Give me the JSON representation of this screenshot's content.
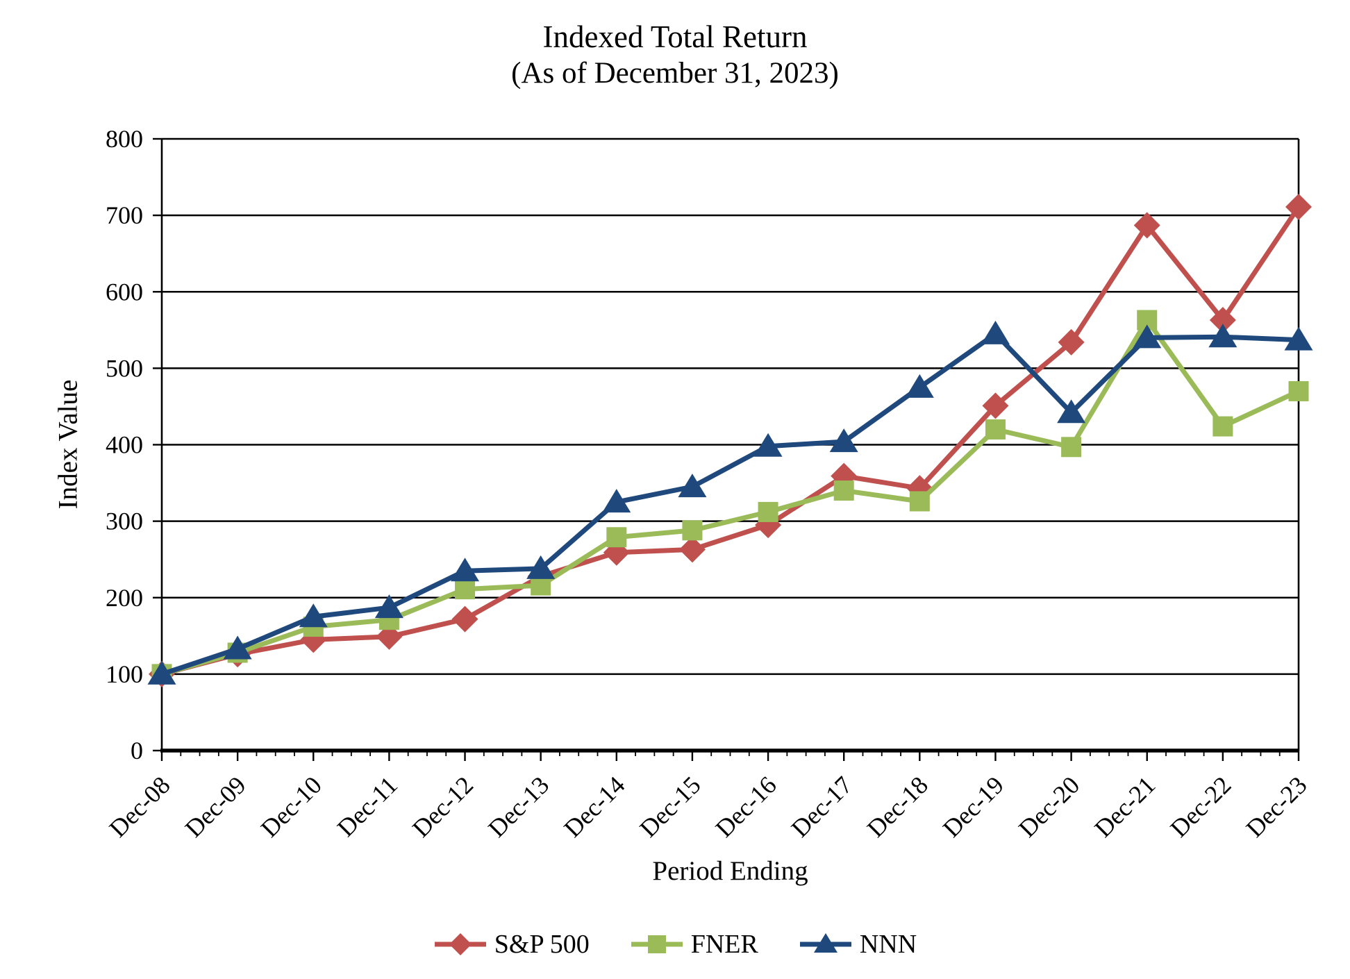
{
  "title": "Indexed Total Return",
  "subtitle": "(As of December 31, 2023)",
  "chart_data": {
    "type": "line",
    "title": "Indexed Total Return",
    "subtitle": "(As of December 31, 2023)",
    "xlabel": "Period Ending",
    "ylabel": "Index Value",
    "ylim": [
      0,
      800
    ],
    "yticks": [
      0,
      100,
      200,
      300,
      400,
      500,
      600,
      700,
      800
    ],
    "grid": "horizontal",
    "legend_position": "bottom",
    "x_minor_divisions": 4,
    "categories": [
      "Dec-08",
      "Dec-09",
      "Dec-10",
      "Dec-11",
      "Dec-12",
      "Dec-13",
      "Dec-14",
      "Dec-15",
      "Dec-16",
      "Dec-17",
      "Dec-18",
      "Dec-19",
      "Dec-20",
      "Dec-21",
      "Dec-22",
      "Dec-23"
    ],
    "series": [
      {
        "name": "S&P 500",
        "marker": "diamond",
        "color": "#C0504D",
        "values": [
          100,
          126,
          145,
          149,
          172,
          228,
          259,
          263,
          295,
          359,
          343,
          451,
          534,
          687,
          563,
          711
        ]
      },
      {
        "name": "FNER",
        "marker": "square",
        "color": "#9BBB59",
        "values": [
          100,
          128,
          162,
          171,
          211,
          216,
          279,
          288,
          312,
          340,
          326,
          420,
          397,
          563,
          424,
          470
        ]
      },
      {
        "name": "NNN",
        "marker": "triangle",
        "color": "#1F497D",
        "values": [
          100,
          133,
          175,
          187,
          235,
          238,
          325,
          345,
          398,
          404,
          475,
          545,
          442,
          540,
          541,
          537
        ]
      }
    ],
    "axis_color": "#000000",
    "background_color": "#FFFFFF"
  }
}
